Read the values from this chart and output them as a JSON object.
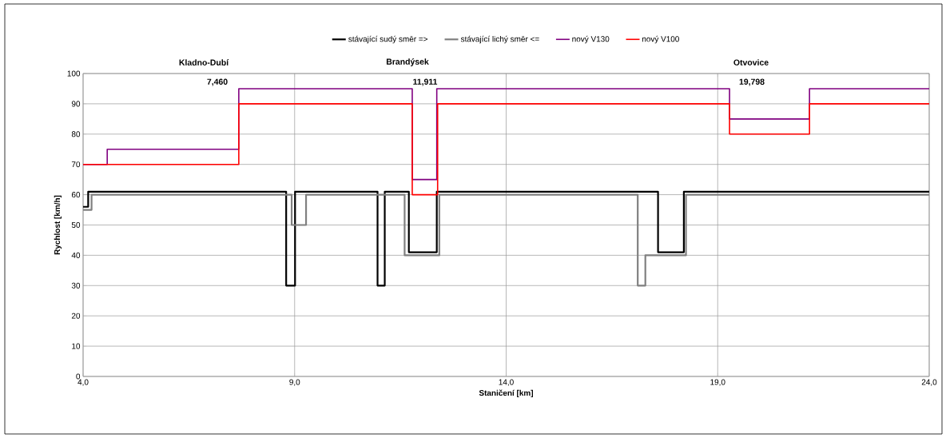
{
  "chart_data": {
    "type": "step",
    "xlabel": "Staničení [km]",
    "ylabel": "Rychlost [km/h]",
    "xlim": [
      4,
      24
    ],
    "xticks": [
      {
        "value": 4,
        "label": "4,0"
      },
      {
        "value": 9,
        "label": "9,0"
      },
      {
        "value": 14,
        "label": "14,0"
      },
      {
        "value": 19,
        "label": "19,0"
      },
      {
        "value": 24,
        "label": "24,0"
      }
    ],
    "ylim": [
      0,
      100
    ],
    "yticks": [
      0,
      10,
      20,
      30,
      40,
      50,
      60,
      70,
      80,
      90,
      100
    ],
    "grid": true,
    "legend": "top",
    "series": [
      {
        "name": "stávající sudý směr =>",
        "color": "#000000",
        "x": [
          4.0,
          4.12,
          8.8,
          9.01,
          10.96,
          11.13,
          11.7,
          12.36,
          17.59,
          18.2,
          24.0
        ],
        "values": [
          56,
          61,
          30,
          61,
          30,
          61,
          41,
          61,
          41,
          61,
          61
        ]
      },
      {
        "name": "stávající lichý směr <=",
        "color": "#808080",
        "x": [
          4.0,
          4.2,
          8.93,
          9.27,
          11.6,
          12.42,
          17.11,
          17.29,
          18.25,
          24.0
        ],
        "values": [
          55,
          60,
          50,
          60,
          40,
          60,
          30,
          40,
          60,
          60
        ]
      },
      {
        "name": "nový V130",
        "color": "#800080",
        "x": [
          4.0,
          4.57,
          7.68,
          11.78,
          12.36,
          19.28,
          21.17,
          24.0
        ],
        "values": [
          70,
          75,
          95,
          65,
          95,
          85,
          95,
          95
        ]
      },
      {
        "name": "nový V100",
        "color": "#ff0000",
        "x": [
          4.0,
          7.68,
          11.78,
          12.38,
          19.28,
          21.17,
          24.0
        ],
        "values": [
          70,
          90,
          60,
          90,
          80,
          90,
          90
        ]
      }
    ],
    "annotations": [
      "Kladno-Dubí",
      "7,460",
      "Brandýsek",
      "11,911",
      "Otvovice",
      "19,798"
    ]
  }
}
